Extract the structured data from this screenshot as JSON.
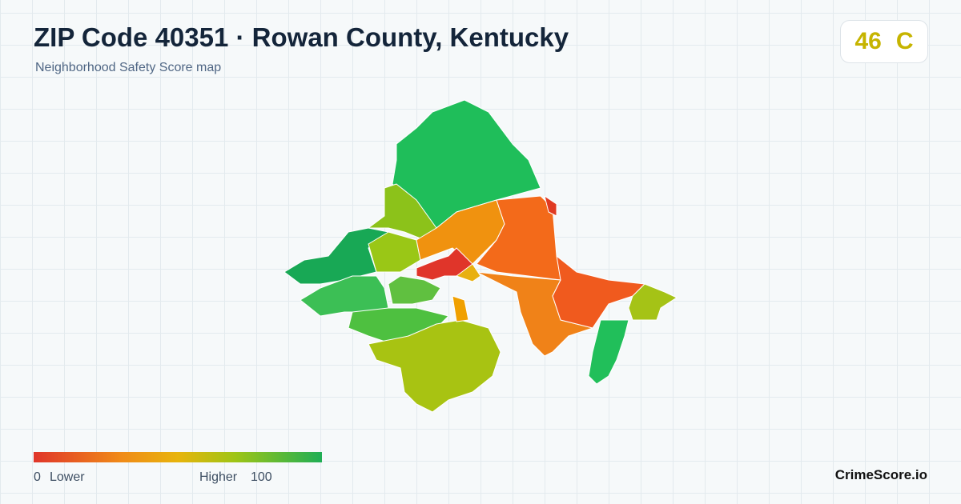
{
  "header": {
    "title": "ZIP Code 40351 · Rowan County, Kentucky",
    "subtitle": "Neighborhood Safety Score map"
  },
  "score": {
    "value": 46,
    "grade": "C"
  },
  "legend": {
    "min": 0,
    "min_label": "Lower",
    "max_label": "Higher",
    "max": 100
  },
  "brand": "CrimeScore.io"
}
